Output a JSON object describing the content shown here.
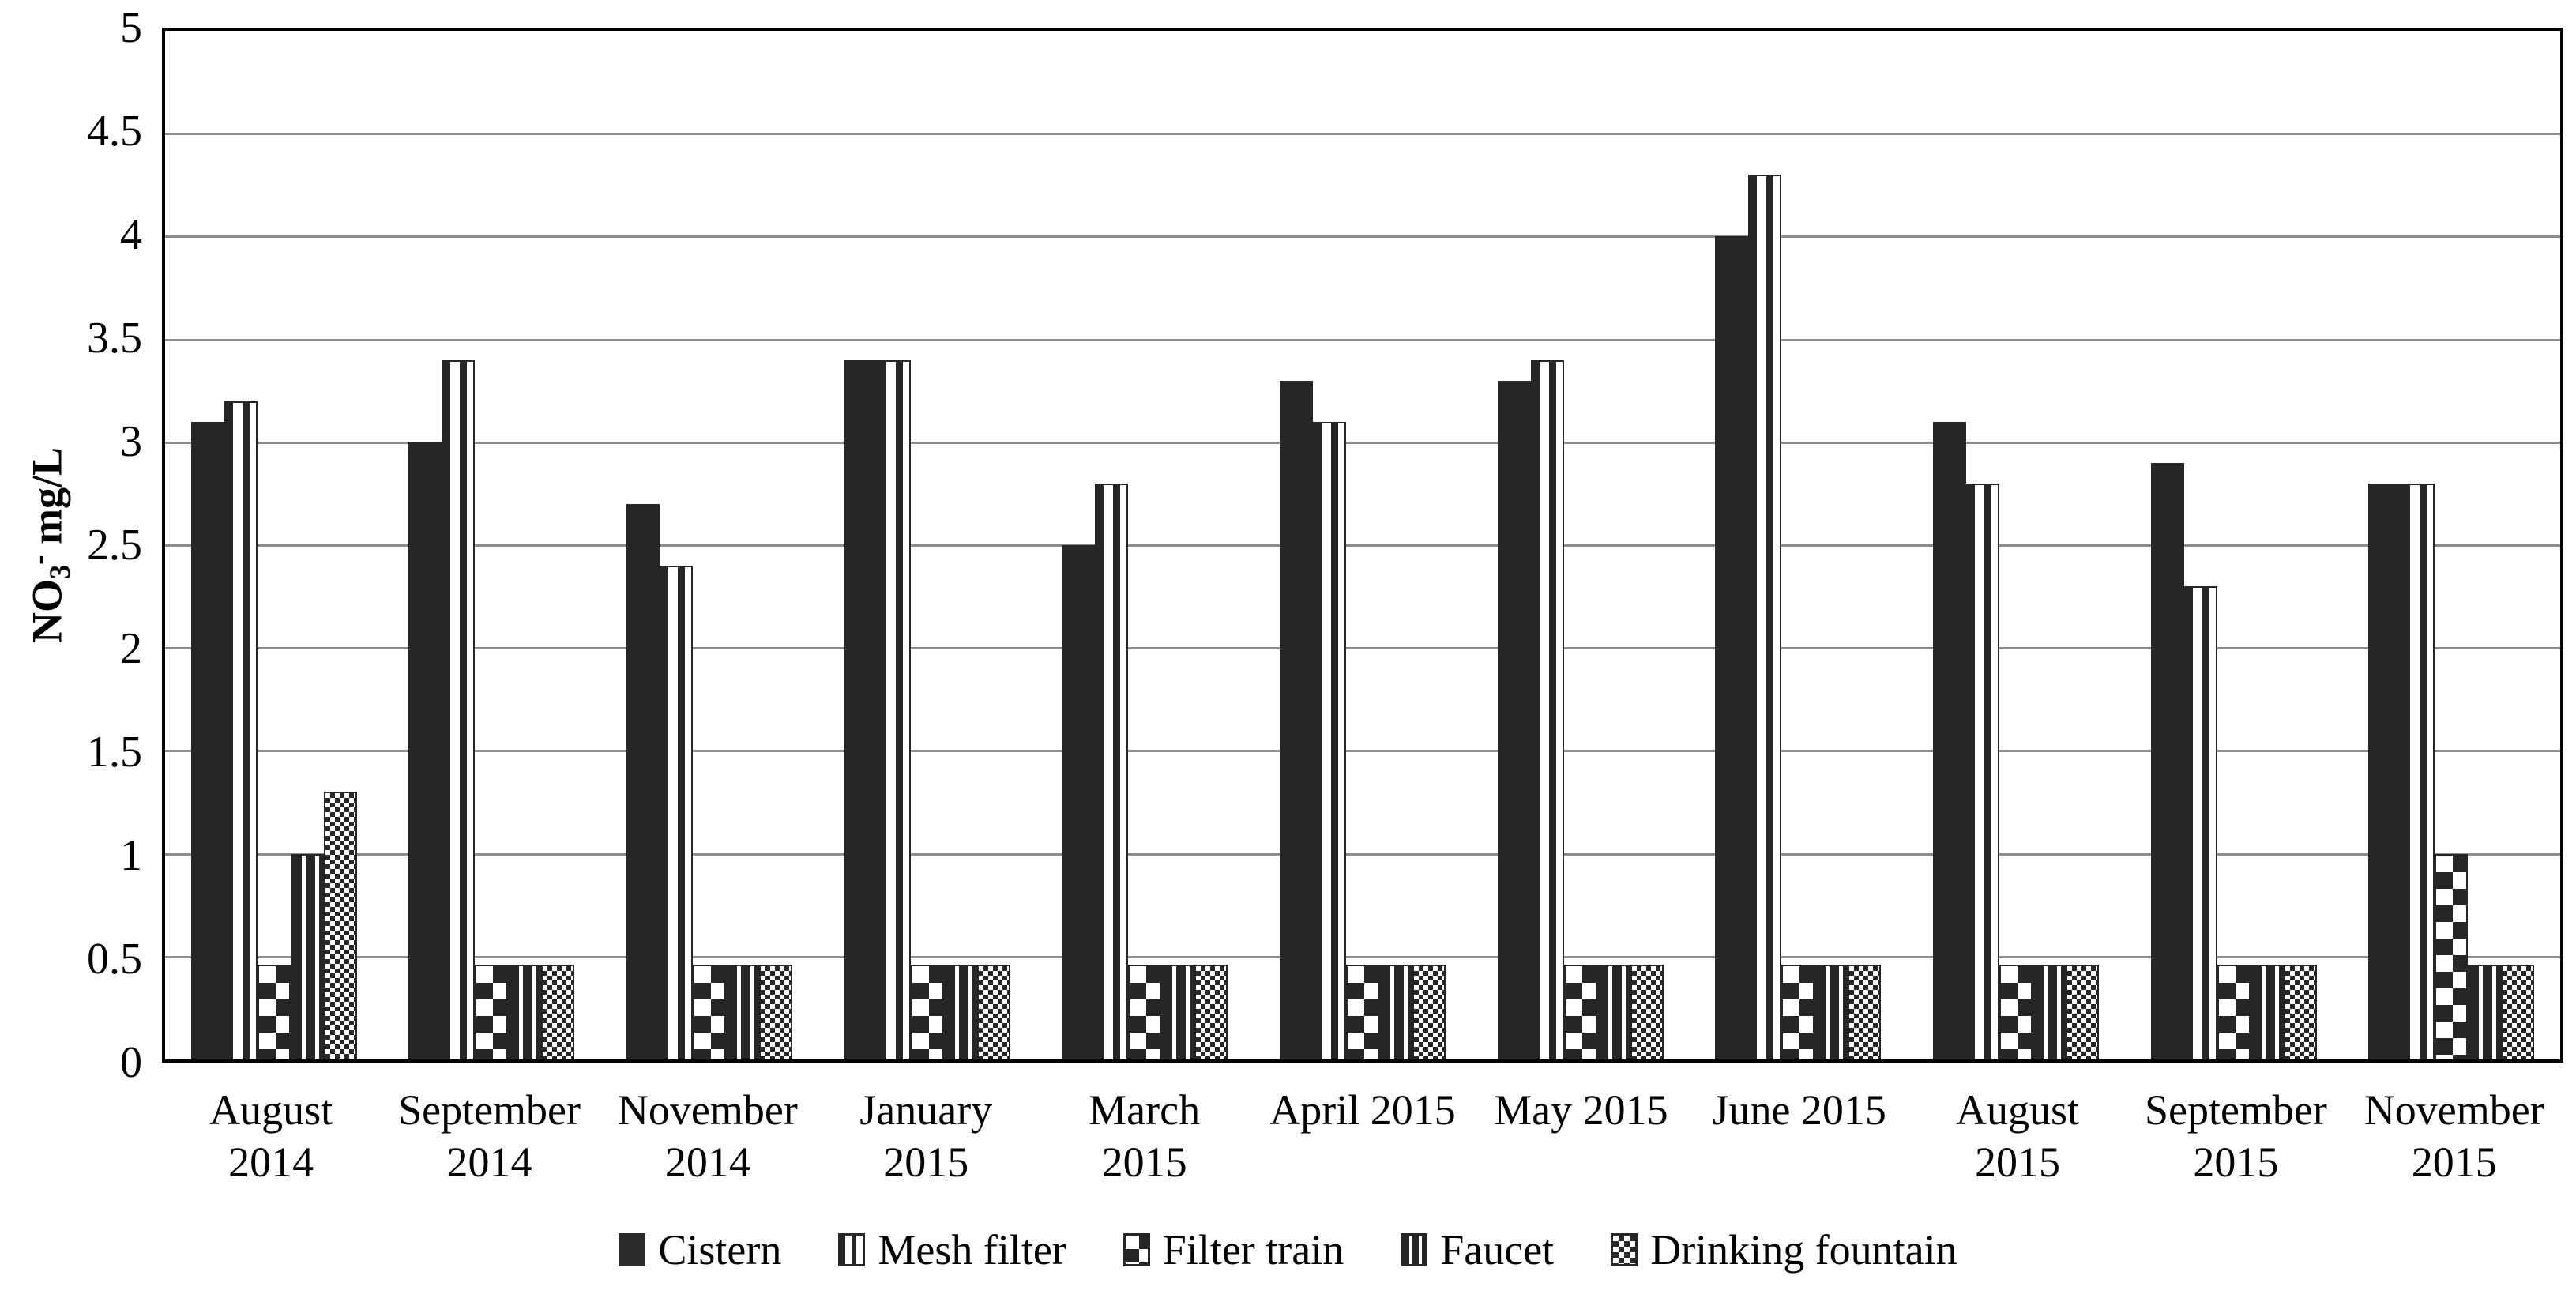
{
  "colors": {
    "bar_dark": "#262626",
    "gridline": "#8c8c8c",
    "axis": "#000000",
    "background": "#ffffff"
  },
  "y_axis": {
    "title_prefix": "NO",
    "title_sub": "3",
    "title_sup": "-",
    "title_suffix": " mg/L",
    "ticks_top_to_bottom": [
      "5",
      "4.5",
      "4",
      "3.5",
      "3",
      "2.5",
      "2",
      "1.5",
      "1",
      "0.5",
      "0"
    ],
    "step": 0.5
  },
  "chart_data": {
    "type": "bar",
    "title": "",
    "xlabel": "",
    "ylabel": "NO3- mg/L",
    "ylim": [
      0,
      5
    ],
    "grid": "horizontal",
    "legend_position": "bottom",
    "categories": [
      [
        "August",
        "2014"
      ],
      [
        "September",
        "2014"
      ],
      [
        "November",
        "2014"
      ],
      [
        "January",
        "2015"
      ],
      [
        "March",
        "2015"
      ],
      [
        "April 2015"
      ],
      [
        "May 2015"
      ],
      [
        "June 2015"
      ],
      [
        "August",
        "2015"
      ],
      [
        "September",
        "2015"
      ],
      [
        "November",
        "2015"
      ]
    ],
    "series": [
      {
        "name": "Cistern",
        "pattern": "solid",
        "values": [
          3.1,
          3.0,
          2.7,
          3.4,
          2.5,
          3.3,
          3.3,
          4.0,
          3.1,
          2.9,
          2.8
        ]
      },
      {
        "name": "Mesh filter",
        "pattern": "wide-vertical-stripes",
        "values": [
          3.2,
          3.4,
          2.4,
          3.4,
          2.8,
          3.1,
          3.4,
          4.3,
          2.8,
          2.3,
          2.8
        ]
      },
      {
        "name": "Filter train",
        "pattern": "large-checker",
        "values": [
          0.46,
          0.46,
          0.46,
          0.46,
          0.46,
          0.46,
          0.46,
          0.46,
          0.46,
          0.46,
          1.0
        ]
      },
      {
        "name": "Faucet",
        "pattern": "thin-vertical-stripes",
        "values": [
          1.0,
          0.46,
          0.46,
          0.46,
          0.46,
          0.46,
          0.46,
          0.46,
          0.46,
          0.46,
          0.46
        ]
      },
      {
        "name": "Drinking fountain",
        "pattern": "fine-checker",
        "values": [
          1.3,
          0.46,
          0.46,
          0.46,
          0.46,
          0.46,
          0.46,
          0.46,
          0.46,
          0.46,
          0.46
        ]
      }
    ]
  }
}
